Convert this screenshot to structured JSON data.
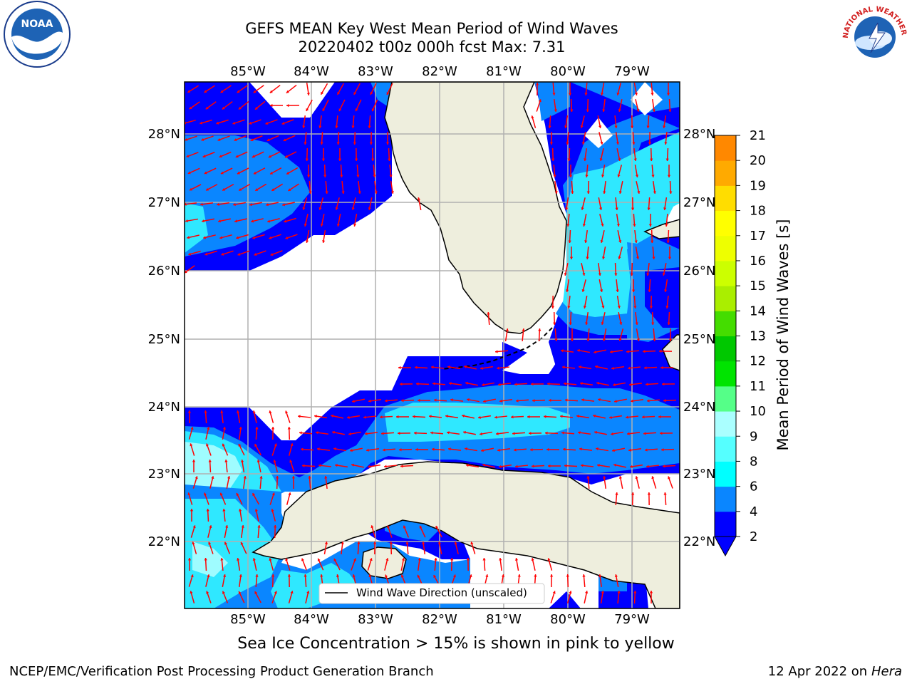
{
  "header": {
    "title_line1": "GEFS MEAN Key West Mean Period of Wind Waves",
    "title_line2": "20220402 t00z 000h fcst   Max: 7.31"
  },
  "map": {
    "lon_labels": [
      "85°W",
      "84°W",
      "83°W",
      "82°W",
      "81°W",
      "80°W",
      "79°W"
    ],
    "lat_labels": [
      "28°N",
      "27°N",
      "26°N",
      "25°N",
      "24°N",
      "23°N",
      "22°N"
    ],
    "legend_label": "Wind Wave Direction (unscaled)",
    "colors": {
      "land": "#eeeedd",
      "band_2_4": "#0000ff",
      "band_4_6": "#0a86ff",
      "band_6_8": "#2fe8ff",
      "band_8_9": "#9ffcff",
      "arrow": "#ff0000",
      "grid": "#b0b0b0"
    }
  },
  "colorbar": {
    "label": "Mean Period of Wind Waves [s]",
    "ticks": [
      "2",
      "4",
      "6",
      "8",
      "9",
      "10",
      "11",
      "12",
      "13",
      "14",
      "15",
      "16",
      "17",
      "18",
      "19",
      "20",
      "21"
    ],
    "colors": [
      "#0000ff",
      "#0a86ff",
      "#00ffff",
      "#55ffff",
      "#aaffff",
      "#55ff88",
      "#00e400",
      "#00c800",
      "#44dd00",
      "#aaee00",
      "#ccff00",
      "#eeff00",
      "#ffff00",
      "#ffdd00",
      "#ffaa00",
      "#ff8800",
      "#ff5500",
      "#ff2a00",
      "#ff0000"
    ],
    "arrow_color": "#0000ff"
  },
  "ice_note": "Sea Ice Concentration > 15% is shown in pink to yellow",
  "footer": {
    "left": "NCEP/EMC/Verification Post Processing Product Generation Branch",
    "date": "12 Apr 2022 on ",
    "machine": "Hera"
  },
  "logos": {
    "noaa": "NOAA",
    "nws": "NATIONAL WEATHER SERVICE"
  }
}
